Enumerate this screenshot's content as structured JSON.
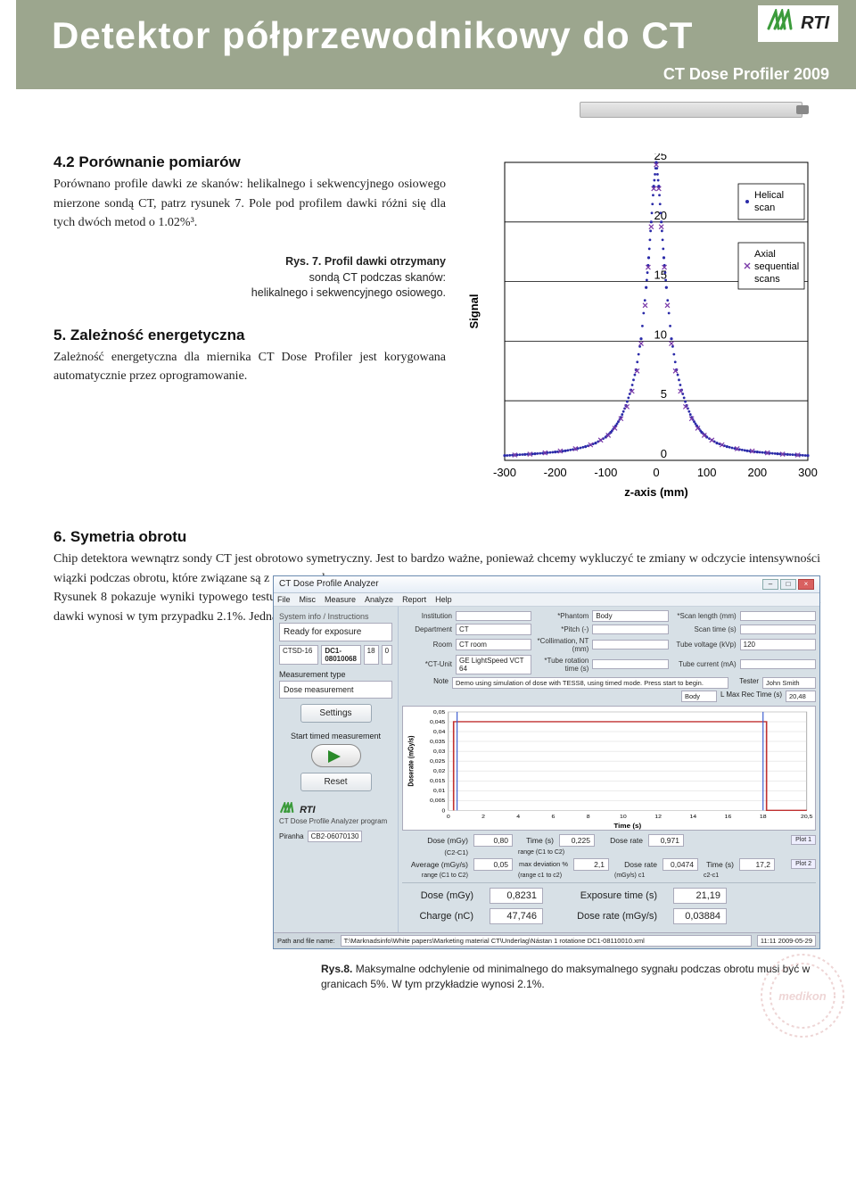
{
  "header": {
    "title": "Detektor półprzewodnikowy do CT",
    "subtitle": "CT Dose Profiler 2009",
    "logo_mark": "꘎",
    "logo_text": "RTI"
  },
  "section42": {
    "heading": "4.2 Porównanie pomiarów",
    "para": "Porównano profile dawki ze skanów: helikalnego i sekwencyjnego osiowego mierzone sondą CT, patrz rysunek 7. Pole pod profilem dawki różni się dla tych dwóch metod o 1.02%³."
  },
  "fig7cap": {
    "line1": "Rys. 7. Profil dawki otrzymany",
    "line2": "sondą CT podczas skanów:",
    "line3": "helikalnego i sekwencyjnego osiowego."
  },
  "section5": {
    "heading": "5. Zależność energetyczna",
    "para": "Zależność energetyczna dla miernika CT Dose Profiler jest korygowana automatycznie przez oprogramowanie."
  },
  "chart": {
    "ylabel": "Signal",
    "xlabel": "z-axis (mm)",
    "xlim": [
      -300,
      300
    ],
    "ylim": [
      0,
      25
    ],
    "xticks": [
      -300,
      -200,
      -100,
      0,
      100,
      200,
      300
    ],
    "yticks": [
      0,
      5,
      10,
      15,
      20,
      25
    ],
    "legend": [
      {
        "label": "Helical scan",
        "color": "#2a2aa8",
        "marker": "dot"
      },
      {
        "label": "Axial sequential scans",
        "color": "#7a3aa8",
        "marker": "x"
      }
    ],
    "series_helical": {
      "color": "#2a2aa8",
      "x": [
        -300,
        -280,
        -260,
        -240,
        -220,
        -200,
        -180,
        -160,
        -140,
        -120,
        -100,
        -90,
        -80,
        -70,
        -60,
        -50,
        -40,
        -30,
        -20,
        -15,
        -10,
        -5,
        0,
        5,
        10,
        15,
        20,
        30,
        40,
        50,
        60,
        70,
        80,
        90,
        100,
        120,
        140,
        160,
        180,
        200,
        220,
        240,
        260,
        280,
        300
      ],
      "y": [
        0.4,
        0.45,
        0.5,
        0.55,
        0.62,
        0.7,
        0.8,
        0.95,
        1.15,
        1.45,
        1.95,
        2.35,
        2.9,
        3.6,
        4.6,
        5.9,
        7.6,
        10.2,
        14.5,
        17.0,
        20.0,
        23.0,
        25.0,
        23.0,
        20.0,
        17.0,
        14.5,
        10.2,
        7.6,
        5.9,
        4.6,
        3.6,
        2.9,
        2.35,
        1.95,
        1.45,
        1.15,
        0.95,
        0.8,
        0.7,
        0.62,
        0.55,
        0.5,
        0.45,
        0.4
      ]
    },
    "series_axial": {
      "color": "#7a3aa8",
      "x": [
        -280,
        -250,
        -220,
        -190,
        -160,
        -130,
        -110,
        -95,
        -82,
        -70,
        -58,
        -48,
        -38,
        -30,
        -22,
        -16,
        -10,
        -5,
        0,
        5,
        10,
        16,
        22,
        30,
        38,
        48,
        58,
        70,
        82,
        95,
        110,
        130,
        160,
        190,
        220,
        250,
        280
      ],
      "y": [
        0.45,
        0.52,
        0.63,
        0.78,
        0.98,
        1.3,
        1.7,
        2.1,
        2.7,
        3.5,
        4.5,
        5.8,
        7.5,
        9.8,
        13.0,
        16.2,
        19.6,
        22.8,
        24.8,
        22.8,
        19.6,
        16.2,
        13.0,
        9.8,
        7.5,
        5.8,
        4.5,
        3.5,
        2.7,
        2.1,
        1.7,
        1.3,
        0.98,
        0.78,
        0.63,
        0.52,
        0.45
      ]
    },
    "grid_color": "#000000",
    "background": "#ffffff"
  },
  "section6": {
    "heading": "6. Symetria obrotu",
    "para": "Chip detektora wewnątrz sondy CT jest obrotowo symetryczny. Jest to bardzo ważne, ponieważ chcemy wykluczyć te zmiany w odczycie intensywności wiązki podczas obrotu, które związane są z samą sondą.\nRysunek 8 pokazuje wyniki typowego testu CT Dose Profiler wykonanego przez RTI Electronics. Odchylenie między minimalną a maksymalną mocą dawki wynosi w tym przypadku 2.1%. Jednak, jeśli podczas ekspozycji obciążenie spada, faktyczne odchylenie podczas rotacji jest jeszcze mniejsze."
  },
  "screenshot": {
    "window_title": "CT Dose Profile Analyzer",
    "menus": [
      "File",
      "Misc",
      "Measure",
      "Analyze",
      "Report",
      "Help"
    ],
    "side": {
      "info_title": "System info / Instructions",
      "status": "Ready for exposure",
      "device": "CTSD-16",
      "serial": "DC1-08010068",
      "ch": "18",
      "ch2": "0",
      "meas_type_lbl": "Measurement type",
      "meas_type": "Dose measurement",
      "btn_settings": "Settings",
      "timed_lbl": "Start timed measurement",
      "btn_reset": "Reset",
      "logo": "RTI",
      "foot": "CT Dose Profile Analyzer program",
      "piranha_lbl": "Piranha",
      "piranha_val": "CB2-06070130"
    },
    "fields": {
      "Institution": "",
      "Hospital": "",
      "Phantom_lbl": "*Phantom",
      "Phantom": "Body",
      "Scanlen_lbl": "*Scan length (mm)",
      "Scanlen": "",
      "Department": "",
      "CT": "CT",
      "Pitch_lbl": "*Pitch (-)",
      "Pitch": "",
      "Scantime_lbl": "Scan time (s)",
      "Scantime": "",
      "Room": "",
      "CTroom": "CT room",
      "Coll_lbl": "*Collimation, NT (mm)",
      "Coll": "",
      "kVp_lbl": "Tube voltage (kVp)",
      "kVp": "120",
      "CTUnit_lbl": "*CT-Unit",
      "CTUnit": "GE LightSpeed VCT 64",
      "Rot_lbl": "*Tube rotation time (s)",
      "Rot": "",
      "mA_lbl": "Tube current (mA)",
      "mA": "",
      "Note_lbl": "Note",
      "Note": "Demo using simulation of dose with TESS8, using timed mode. Press start to begin.",
      "Tester_lbl": "Tester",
      "Tester": "John Smith",
      "Body2": "Body",
      "MaxRec_lbl": "L  Max Rec Time (s)",
      "MaxRec": "20,48"
    },
    "plot": {
      "ylabel": "Doserate (mGy/s)",
      "xlabel": "Time (s)",
      "yticks": [
        "0,05",
        "0,045",
        "0,04",
        "0,035",
        "0,03",
        "0,025",
        "0,02",
        "0,015",
        "0,01",
        "0,005",
        "0"
      ],
      "xticks": [
        "0",
        "2",
        "4",
        "6",
        "8",
        "10",
        "12",
        "14",
        "16",
        "18",
        "20,5"
      ],
      "flat_level": 0.045,
      "drop_at": 18.2,
      "line_color": "#c03030",
      "cursor_color": "#3a5ad0"
    },
    "results": {
      "dose_mgy_lbl": "Dose (mGy)",
      "dose_mgy": "0,80",
      "time_s_lbl": "Time (s)",
      "time_s": "0,225",
      "doserate_lbl": "Dose rate",
      "doserate": "0,971",
      "avg_lbl": "Average (mGy/s)",
      "avg": "0,05",
      "maxdev_lbl": "max deviation %",
      "maxdev": "2,1",
      "doserate2_lbl": "Dose rate",
      "doserate2": "0,0474",
      "time2_lbl": "Time (s)",
      "time2": "17,2",
      "plot1_lbl": "Plot 1",
      "plot2_lbl": "Plot 2",
      "c2c1_lbl": "(C2-C1)",
      "range_lbl": "range (C1 to C2)",
      "range2_lbl": "(range c1 to c2)",
      "mgys_lbl": "(mGy/s) c1",
      "c2c1b_lbl": "c2-c1",
      "big_dose_lbl": "Dose (mGy)",
      "big_dose": "0,8231",
      "big_exp_lbl": "Exposure time  (s)",
      "big_exp": "21,19",
      "big_charge_lbl": "Charge (nC)",
      "big_charge": "47,746",
      "big_rate_lbl": "Dose rate (mGy/s)",
      "big_rate": "0,03884"
    },
    "footer": {
      "path_lbl": "Path and file name:",
      "path": "T:\\Marknadsinfo\\White papers\\Marketing material CT\\Underlag\\Nástan 1 rotatione DC1-08110010.xml",
      "time": "11:11 2009-05-29"
    }
  },
  "fig8cap": "Rys.8. Maksymalne odchylenie od minimalnego do maksymalnego sygnału podczas obrotu musi być w granicach 5%. W tym przykładzie wynosi 2.1%.",
  "stamp": {
    "text": "medikon",
    "color": "#d08a8a"
  }
}
